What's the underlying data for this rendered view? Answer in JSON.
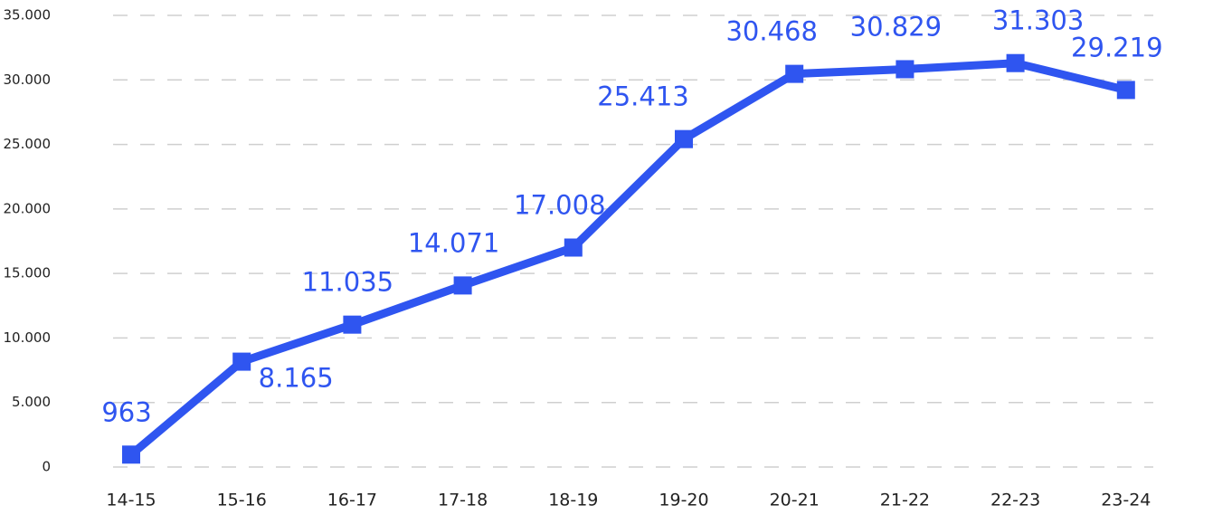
{
  "chart_data": {
    "type": "line",
    "categories": [
      "14-15",
      "15-16",
      "16-17",
      "17-18",
      "18-19",
      "19-20",
      "20-21",
      "21-22",
      "22-23",
      "23-24"
    ],
    "series": [
      {
        "color": "#2f55f0",
        "values": [
          963,
          8165,
          11035,
          14071,
          17008,
          25413,
          30468,
          30829,
          31303,
          29219
        ],
        "value_labels": [
          "963",
          "8.165",
          "11.035",
          "14.071",
          "17.008",
          "25.413",
          "30.468",
          "30.829",
          "31.303",
          "29.219"
        ]
      }
    ],
    "ylim": [
      0,
      35000
    ],
    "yticks": [
      0,
      {
        "value": 5000,
        "label": "5.000"
      },
      {
        "value": 10000,
        "label": "10.000"
      },
      {
        "value": 15000,
        "label": "15.000"
      },
      {
        "value": 20000,
        "label": "20.000"
      },
      {
        "value": 25000,
        "label": "25.000"
      },
      {
        "value": 30000,
        "label": "30.000"
      },
      {
        "value": 35000,
        "label": "35.000"
      }
    ],
    "grid": true
  }
}
